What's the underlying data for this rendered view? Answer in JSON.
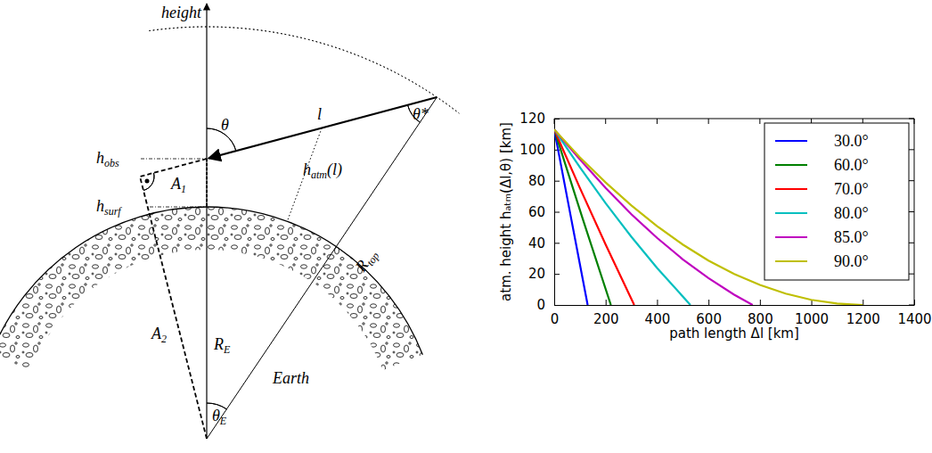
{
  "chart_data": {
    "type": "line",
    "xlabel": "path length Δl [km]",
    "ylabel": "atm. height hₐₜₘ(Δl,θ) [km]",
    "xlim": [
      0,
      1400
    ],
    "xticks": [
      0,
      200,
      400,
      600,
      800,
      1000,
      1200,
      1400
    ],
    "ylim": [
      0,
      120
    ],
    "yticks": [
      0,
      20,
      40,
      60,
      80,
      100,
      120
    ],
    "legend": "upper right",
    "series": [
      {
        "name": "30.0°",
        "color": "#0000ff",
        "x": [
          0,
          65,
          130.1
        ],
        "values": [
          113,
          56.5,
          0
        ]
      },
      {
        "name": "60.0°",
        "color": "#008000",
        "x": [
          0,
          110,
          220.4
        ],
        "values": [
          113,
          55.9,
          0
        ]
      },
      {
        "name": "70.0°",
        "color": "#ff0000",
        "x": [
          0,
          100,
          200,
          311.1
        ],
        "values": [
          113,
          75.3,
          38.9,
          0
        ]
      },
      {
        "name": "80.0°",
        "color": "#00bfbf",
        "x": [
          0,
          100,
          200,
          300,
          400,
          529.7
        ],
        "values": [
          113,
          88.7,
          65.5,
          43.9,
          23.8,
          0
        ]
      },
      {
        "name": "85.0°",
        "color": "#bf00bf",
        "x": [
          0,
          100,
          200,
          300,
          400,
          500,
          600,
          700,
          771.7
        ],
        "values": [
          113,
          93.7,
          75.3,
          58.4,
          43.2,
          29.4,
          17.3,
          6.6,
          0
        ]
      },
      {
        "name": "90.0°",
        "color": "#bfbf00",
        "x": [
          0,
          100,
          200,
          300,
          400,
          500,
          600,
          700,
          800,
          900,
          1000,
          1100,
          1200
        ],
        "values": [
          113,
          95.0,
          78.9,
          64.1,
          50.8,
          38.9,
          28.6,
          20.0,
          12.9,
          7.3,
          3.3,
          0.9,
          0
        ]
      }
    ]
  },
  "diagram": {
    "axis_label": "height",
    "labels": {
      "theta": {
        "text": "θ"
      },
      "l": {
        "text": "l"
      },
      "theta_star": {
        "text": "θ*"
      },
      "h_obs": {
        "text": "h",
        "sub": "obs"
      },
      "h_surf": {
        "text": "h",
        "sub": "surf"
      },
      "a1": {
        "text": "A",
        "sub": "1"
      },
      "h_atm": {
        "text": "h",
        "sub": "atm",
        "after": "(l)"
      },
      "r_top": {
        "text": "R",
        "sub": "top"
      },
      "a2": {
        "text": "A",
        "sub": "2"
      },
      "r_e": {
        "text": "R",
        "sub": "E"
      },
      "earth": {
        "text": "Earth"
      },
      "theta_e": {
        "text": "θ",
        "sub": "E"
      }
    }
  }
}
